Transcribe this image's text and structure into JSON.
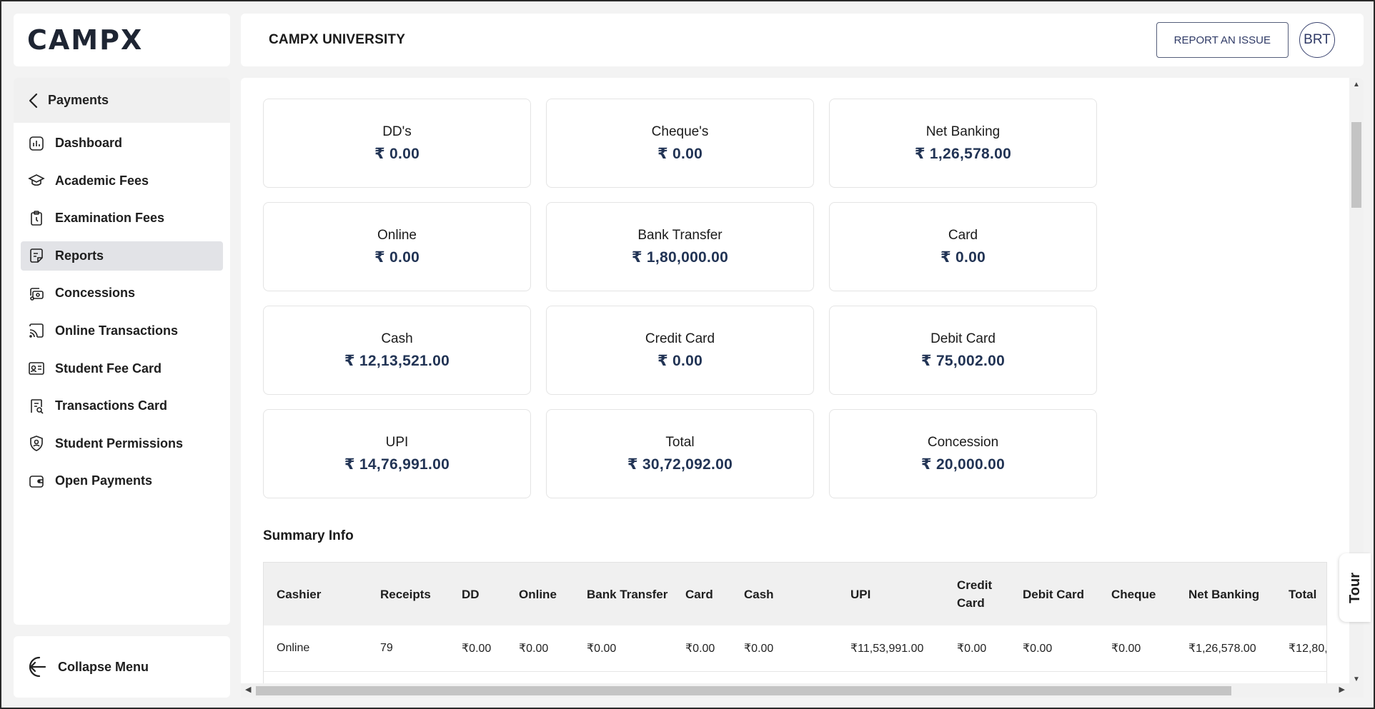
{
  "brand": {
    "logo": "CAMPX"
  },
  "header": {
    "org_name": "CAMPX UNIVERSITY",
    "report_button": "REPORT AN ISSUE",
    "avatar_initials": "BRT"
  },
  "sidebar": {
    "back_label": "Payments",
    "items": [
      {
        "label": "Dashboard",
        "icon": "dashboard-icon"
      },
      {
        "label": "Academic Fees",
        "icon": "graduation-cap-icon"
      },
      {
        "label": "Examination Fees",
        "icon": "clipboard-icon"
      },
      {
        "label": "Reports",
        "icon": "report-icon",
        "active": true
      },
      {
        "label": "Concessions",
        "icon": "concession-icon"
      },
      {
        "label": "Online Transactions",
        "icon": "cast-icon"
      },
      {
        "label": "Student Fee Card",
        "icon": "id-card-icon"
      },
      {
        "label": "Transactions Card",
        "icon": "receipt-icon"
      },
      {
        "label": "Student Permissions",
        "icon": "user-shield-icon"
      },
      {
        "label": "Open Payments",
        "icon": "wallet-icon"
      }
    ],
    "collapse_label": "Collapse Menu"
  },
  "cards": [
    {
      "label": "DD's",
      "value": "₹ 0.00"
    },
    {
      "label": "Cheque's",
      "value": "₹ 0.00"
    },
    {
      "label": "Net Banking",
      "value": "₹ 1,26,578.00"
    },
    {
      "label": "Online",
      "value": "₹ 0.00"
    },
    {
      "label": "Bank Transfer",
      "value": "₹ 1,80,000.00"
    },
    {
      "label": "Card",
      "value": "₹ 0.00"
    },
    {
      "label": "Cash",
      "value": "₹ 12,13,521.00"
    },
    {
      "label": "Credit Card",
      "value": "₹ 0.00"
    },
    {
      "label": "Debit Card",
      "value": "₹ 75,002.00"
    },
    {
      "label": "UPI",
      "value": "₹ 14,76,991.00"
    },
    {
      "label": "Total",
      "value": "₹ 30,72,092.00"
    },
    {
      "label": "Concession",
      "value": "₹ 20,000.00"
    }
  ],
  "summary": {
    "title": "Summary Info",
    "columns": [
      "Cashier",
      "Receipts",
      "DD",
      "Online",
      "Bank Transfer",
      "Card",
      "Cash",
      "UPI",
      "Credit Card",
      "Debit Card",
      "Cheque",
      "Net Banking",
      "Total"
    ],
    "rows": [
      [
        "Online",
        "79",
        "₹0.00",
        "₹0.00",
        "₹0.00",
        "₹0.00",
        "₹0.00",
        "₹11,53,991.00",
        "₹0.00",
        "₹0.00",
        "₹0.00",
        "₹1,26,578.00",
        "₹12,80,"
      ]
    ]
  },
  "tour_label": "Tour"
}
